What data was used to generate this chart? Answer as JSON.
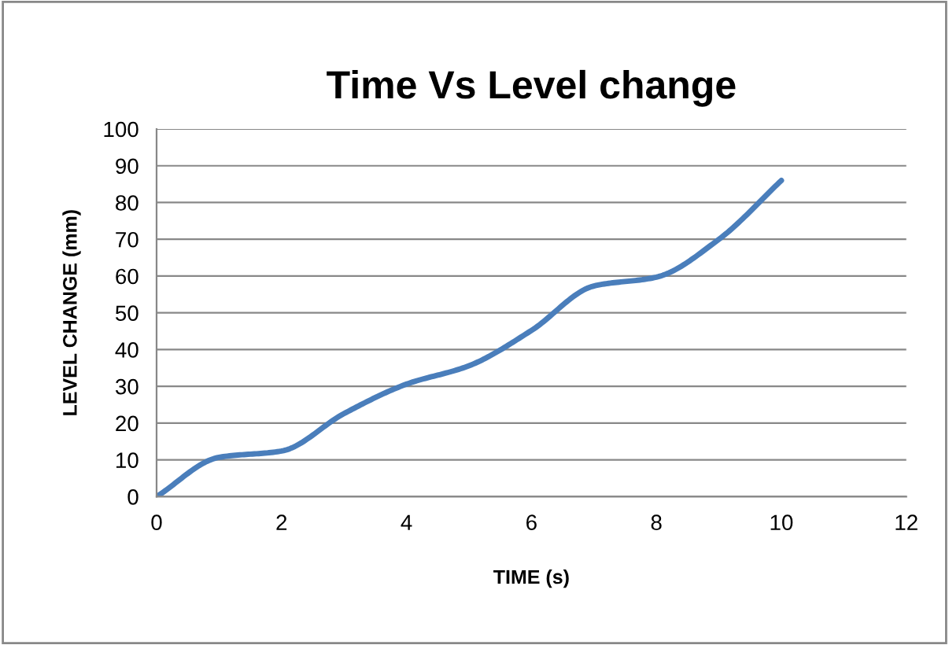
{
  "chart_data": {
    "type": "line",
    "title": "Time Vs Level change",
    "xlabel": "TIME (s)",
    "ylabel": "LEVEL CHANGE (mm)",
    "x": [
      0,
      1,
      2,
      3,
      4,
      5,
      6,
      7,
      8,
      9,
      10
    ],
    "series": [
      {
        "color": "#4a7ebb",
        "values": [
          0,
          10.7,
          12.4,
          22.6,
          30.6,
          35.6,
          45.2,
          57.3,
          59.7,
          70,
          86
        ]
      }
    ],
    "xlim": [
      0,
      12
    ],
    "xticks": [
      0,
      2,
      4,
      6,
      8,
      10,
      12
    ],
    "ylim": [
      0,
      100
    ],
    "yticks": [
      0,
      10,
      20,
      30,
      40,
      50,
      60,
      70,
      80,
      90,
      100
    ],
    "grid": "y",
    "marker": "none",
    "line_style": "solid"
  }
}
